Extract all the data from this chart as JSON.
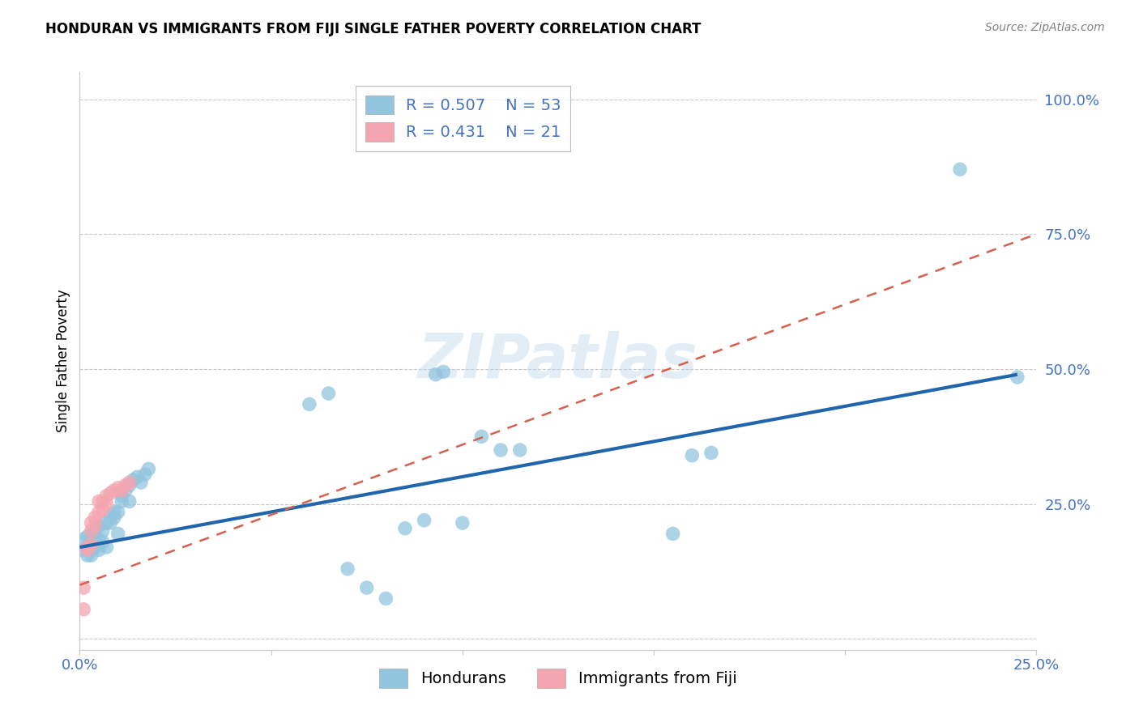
{
  "title": "HONDURAN VS IMMIGRANTS FROM FIJI SINGLE FATHER POVERTY CORRELATION CHART",
  "source": "Source: ZipAtlas.com",
  "ylabel": "Single Father Poverty",
  "watermark": "ZIPatlas",
  "legend_blue_r": "R = 0.507",
  "legend_blue_n": "N = 53",
  "legend_pink_r": "R = 0.431",
  "legend_pink_n": "N = 21",
  "xlim": [
    0.0,
    0.25
  ],
  "ylim": [
    -0.02,
    1.05
  ],
  "yticks": [
    0.0,
    0.25,
    0.5,
    0.75,
    1.0
  ],
  "ytick_labels": [
    "",
    "25.0%",
    "50.0%",
    "75.0%",
    "100.0%"
  ],
  "xticks": [
    0.0,
    0.05,
    0.1,
    0.15,
    0.2,
    0.25
  ],
  "xtick_labels": [
    "0.0%",
    "",
    "",
    "",
    "",
    "25.0%"
  ],
  "blue_color": "#92c5de",
  "blue_line_color": "#2166ac",
  "pink_color": "#f4a6b0",
  "pink_line_color": "#d6604d",
  "blue_x": [
    0.001,
    0.001,
    0.002,
    0.002,
    0.002,
    0.003,
    0.003,
    0.003,
    0.003,
    0.004,
    0.004,
    0.004,
    0.005,
    0.005,
    0.005,
    0.006,
    0.006,
    0.007,
    0.007,
    0.008,
    0.008,
    0.009,
    0.009,
    0.01,
    0.01,
    0.011,
    0.011,
    0.012,
    0.013,
    0.013,
    0.014,
    0.015,
    0.016,
    0.017,
    0.018,
    0.06,
    0.065,
    0.07,
    0.075,
    0.08,
    0.085,
    0.09,
    0.093,
    0.095,
    0.1,
    0.105,
    0.11,
    0.115,
    0.155,
    0.16,
    0.165,
    0.23,
    0.245
  ],
  "blue_y": [
    0.165,
    0.185,
    0.155,
    0.17,
    0.19,
    0.155,
    0.165,
    0.18,
    0.195,
    0.17,
    0.185,
    0.2,
    0.165,
    0.185,
    0.21,
    0.18,
    0.2,
    0.17,
    0.215,
    0.215,
    0.225,
    0.225,
    0.235,
    0.195,
    0.235,
    0.255,
    0.265,
    0.275,
    0.255,
    0.285,
    0.295,
    0.3,
    0.29,
    0.305,
    0.315,
    0.435,
    0.455,
    0.13,
    0.095,
    0.075,
    0.205,
    0.22,
    0.49,
    0.495,
    0.215,
    0.375,
    0.35,
    0.35,
    0.195,
    0.34,
    0.345,
    0.87,
    0.485
  ],
  "pink_x": [
    0.001,
    0.001,
    0.002,
    0.002,
    0.003,
    0.003,
    0.003,
    0.004,
    0.004,
    0.005,
    0.005,
    0.006,
    0.006,
    0.007,
    0.007,
    0.008,
    0.009,
    0.01,
    0.011,
    0.012,
    0.013
  ],
  "pink_y": [
    0.095,
    0.055,
    0.17,
    0.165,
    0.2,
    0.215,
    0.175,
    0.21,
    0.225,
    0.235,
    0.255,
    0.24,
    0.255,
    0.25,
    0.265,
    0.27,
    0.275,
    0.28,
    0.275,
    0.285,
    0.29
  ],
  "blue_line_x": [
    0.0,
    0.245
  ],
  "blue_line_y": [
    0.17,
    0.49
  ],
  "pink_line_x": [
    0.0,
    0.25
  ],
  "pink_line_y": [
    0.1,
    0.75
  ]
}
